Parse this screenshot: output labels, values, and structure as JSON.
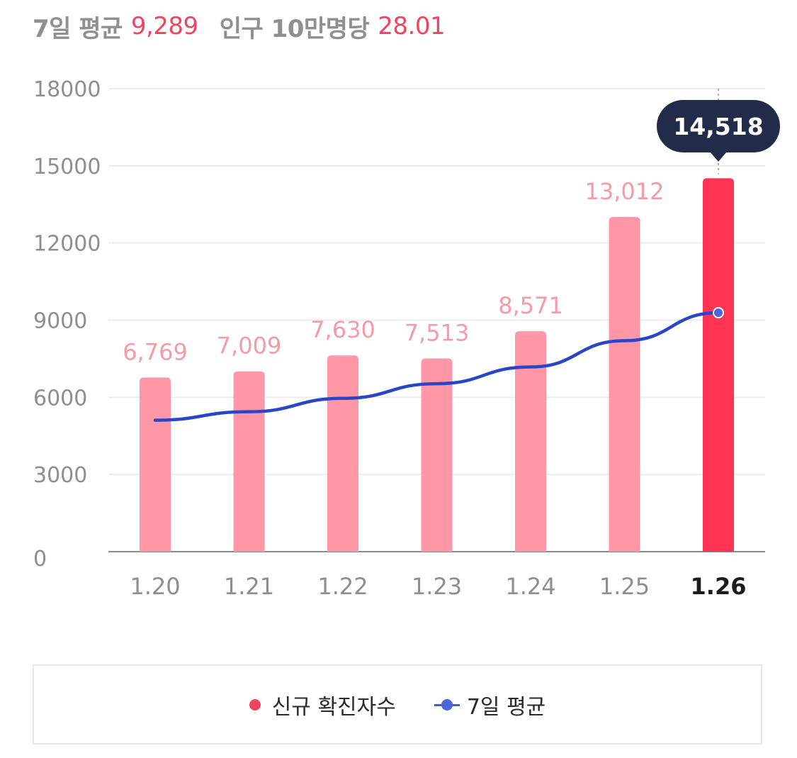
{
  "summary": {
    "avg_label": "7일 평균",
    "avg_value": "9,289",
    "per_label": "인구 10만명당",
    "per_value": "28.01"
  },
  "chart_data": {
    "type": "bar",
    "categories": [
      "1.20",
      "1.21",
      "1.22",
      "1.23",
      "1.24",
      "1.25",
      "1.26"
    ],
    "series": [
      {
        "name": "신규 확진자수",
        "type": "bar",
        "values": [
          6769,
          7009,
          7630,
          7513,
          8571,
          13012,
          14518
        ]
      },
      {
        "name": "7일 평균",
        "type": "line",
        "values": [
          5110,
          5440,
          5960,
          6530,
          7180,
          8200,
          9289
        ]
      }
    ],
    "value_labels": [
      "6,769",
      "7,009",
      "7,630",
      "7,513",
      "8,571",
      "13,012",
      "14,518"
    ],
    "yticks": [
      "0",
      "3000",
      "6000",
      "9000",
      "12000",
      "15000",
      "18000"
    ],
    "ylim": [
      0,
      18000
    ],
    "highlight_index": 6,
    "grid": true,
    "legend_position": "bottom",
    "colors": {
      "bar": "#ff97a6",
      "bar_highlight": "#ff3354",
      "label": "#f59aa7",
      "line": "#2a45c8",
      "tooltip_bg": "#232b4a"
    }
  },
  "legend": {
    "items": [
      {
        "label": "신규 확진자수",
        "marker": "dot"
      },
      {
        "label": "7일 평균",
        "marker": "line-dot"
      }
    ]
  }
}
